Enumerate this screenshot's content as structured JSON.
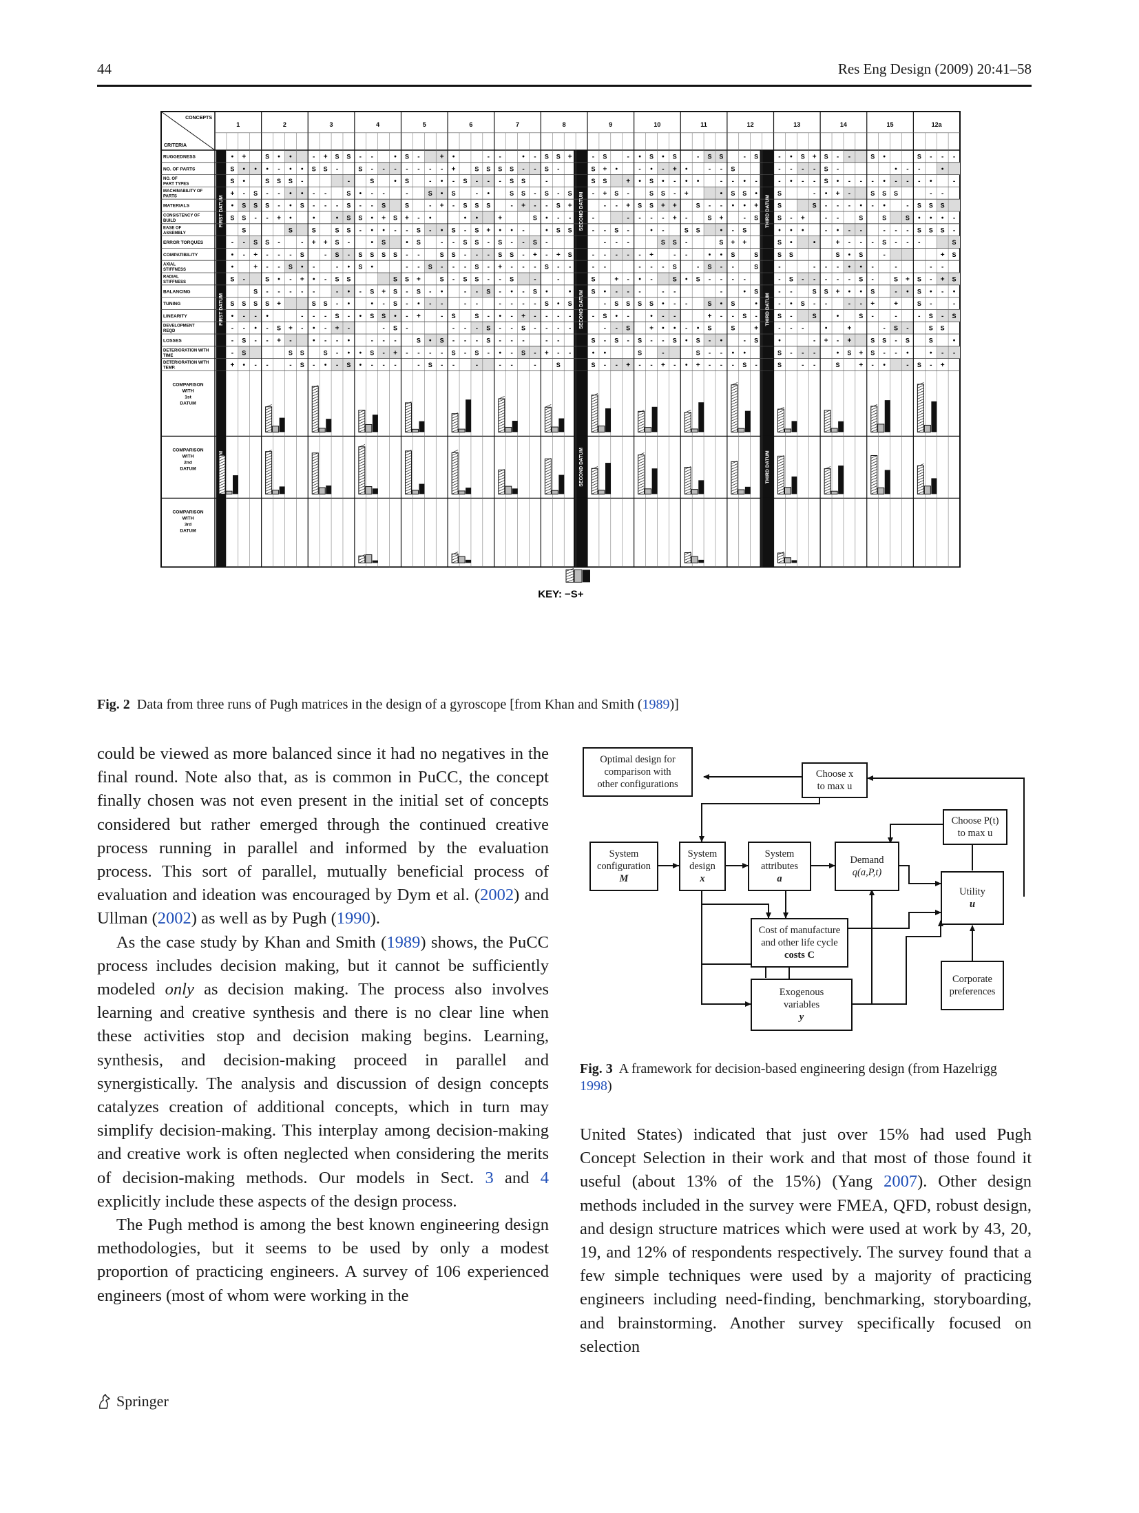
{
  "header": {
    "page_number": "44",
    "journal": "Res Eng Design (2009) 20:41–58"
  },
  "figure2": {
    "caption_label": "Fig. 2",
    "caption_text": "Data from three runs of Pugh matrices in the design of a gyroscope [from Khan and Smith (",
    "caption_link": "1989",
    "caption_end": ")]",
    "corner_top": "CONCEPTS",
    "corner_bottom": "CRITERIA",
    "concepts": [
      "1",
      "2",
      "3",
      "4",
      "5",
      "6",
      "7",
      "8",
      "9",
      "10",
      "11",
      "12",
      "13",
      "14",
      "15",
      "12a"
    ],
    "criteria": [
      "RUGGEDNESS",
      "NO. OF PARTS",
      "NO. OF PART TYPES",
      "MACHINABILITY OF PARTS",
      "MATERIALS",
      "CONSISTENCY OF BUILD",
      "EASE OF ASSEMBLY",
      "ERROR TORQUES",
      "COMPATIBILITY",
      "AXIAL STIFFNESS",
      "RADIAL STIFFNESS",
      "BALANCING",
      "TUNING",
      "LINEARITY",
      "DEVELOPMENT REQD",
      "LOSSES",
      "DETERIORATION WITH TIME",
      "DETERIORATION WITH TEMP."
    ],
    "comparison_rows": [
      "COMPARISON WITH 1st DATUM",
      "COMPARISON WITH 2nd DATUM",
      "COMPARISON WITH 3rd DATUM"
    ],
    "datum_labels": [
      "FIRST DATUM",
      "SECOND DATUM",
      "THIRD DATUM"
    ],
    "key_label": "KEY:",
    "key_symbols": "−S+",
    "marks": [
      "•",
      "S",
      "+",
      "-"
    ]
  },
  "figure3": {
    "boxes": {
      "optimal": [
        "Optimal design for",
        "comparison with",
        "other configurations"
      ],
      "choose_x": [
        "Choose x",
        "to max u"
      ],
      "choose_p": [
        "Choose P(t)",
        "to max u"
      ],
      "sys_config": [
        "System",
        "configuration",
        "M"
      ],
      "sys_design": [
        "System",
        "design",
        "x"
      ],
      "sys_attr": [
        "System",
        "attributes",
        "a"
      ],
      "demand": [
        "Demand",
        "q(a,P,t)"
      ],
      "utility": [
        "Utility",
        "u"
      ],
      "cost": [
        "Cost of manufacture",
        "and other life cycle",
        "costs  C"
      ],
      "corporate": [
        "Corporate",
        "preferences"
      ],
      "exogenous": [
        "Exogenous",
        "variables",
        "y"
      ]
    },
    "caption_label": "Fig. 3",
    "caption_text": "A framework for decision-based engineering design (from Hazelrigg ",
    "caption_link": "1998",
    "caption_end": ")"
  },
  "left_column": {
    "p1": "could be viewed as more balanced since it had no negatives in the final round. Note also that, as is common in PuCC, the concept finally chosen was not even present in the initial set of concepts considered but rather emerged through the continued creative process running in parallel and informed by the evaluation process. This sort of parallel, mutually beneficial process of evaluation and ideation was encouraged by Dym et al. (",
    "p1_l1": "2002",
    "p1_m1": ") and Ullman (",
    "p1_l2": "2002",
    "p1_m2": ") as well as by Pugh (",
    "p1_l3": "1990",
    "p1_end": ").",
    "p2a": "As the case study by Khan and Smith (",
    "p2_l1": "1989",
    "p2b": ") shows, the PuCC process includes decision making, but it cannot be sufficiently modeled ",
    "p2_em": "only",
    "p2c": " as decision making. The process also involves learning and creative synthesis and there is no clear line when these activities stop and decision making begins. Learning, synthesis, and decision-making proceed in parallel and synergistically. The analysis and discussion of design concepts catalyzes creation of additional concepts, which in turn may simplify decision-making. This interplay among decision-making and creative work is often neglected when considering the merits of decision-making methods. Our models in Sect. ",
    "p2_l2": "3",
    "p2d": " and ",
    "p2_l3": "4",
    "p2e": " explicitly include these aspects of the design process.",
    "p3": "The Pugh method is among the best known engineering design methodologies, but it seems to be used by only a modest proportion of practicing engineers. A survey of 106 experienced engineers (most of whom were working in the"
  },
  "right_column": {
    "p1a": "United States) indicated that just over 15% had used Pugh Concept Selection in their work and that most of those found it useful (about 13% of the 15%) (Yang ",
    "p1_l1": "2007",
    "p1b": "). Other design methods included in the survey were FMEA, QFD, robust design, and design structure matrices which were used at work by 43, 20, 19, and 12% of respondents respectively. The survey found that a few simple techniques were used by a majority of practicing engineers including need-finding, benchmarking, storyboarding, and brainstorming. Another survey specifically focused on selection"
  },
  "footer": {
    "publisher": "Springer"
  }
}
